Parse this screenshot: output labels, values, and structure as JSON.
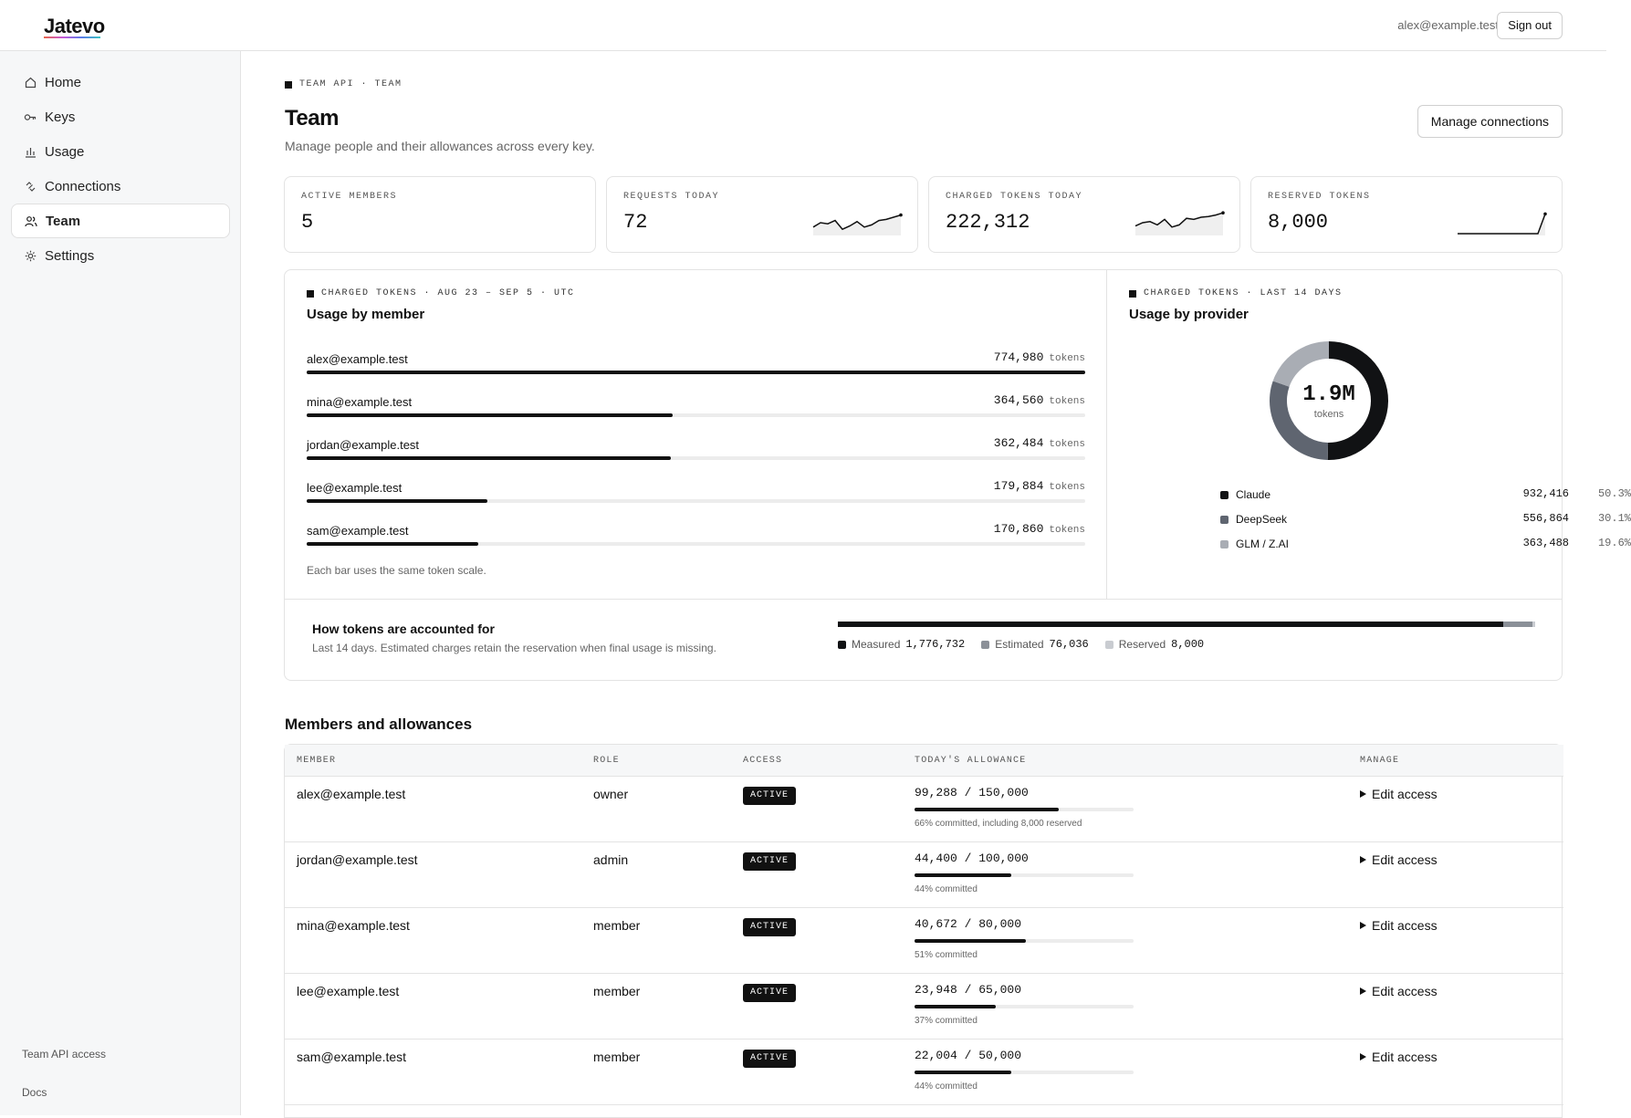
{
  "app": {
    "brand": "Jatevo",
    "user_email": "alex@example.test",
    "signout_label": "Sign out"
  },
  "sidebar": {
    "items": [
      {
        "label": "Home",
        "icon": "home-icon"
      },
      {
        "label": "Keys",
        "icon": "key-icon"
      },
      {
        "label": "Usage",
        "icon": "bar-chart-icon"
      },
      {
        "label": "Connections",
        "icon": "link-icon"
      },
      {
        "label": "Team",
        "icon": "users-icon",
        "active": true
      },
      {
        "label": "Settings",
        "icon": "gear-icon"
      }
    ],
    "footer": {
      "team_api_access": "Team API access",
      "docs": "Docs"
    }
  },
  "header": {
    "breadcrumb": "TEAM API · TEAM",
    "title": "Team",
    "subtitle": "Manage people and their allowances across every key.",
    "manage_button": "Manage connections"
  },
  "stats": [
    {
      "label": "ACTIVE MEMBERS",
      "value": "5"
    },
    {
      "label": "REQUESTS TODAY",
      "value": "72",
      "sparkline": [
        0.3,
        0.5,
        0.45,
        0.6,
        0.2,
        0.35,
        0.55,
        0.3,
        0.4,
        0.6,
        0.65,
        0.75,
        0.85
      ]
    },
    {
      "label": "CHARGED TOKENS TODAY",
      "value": "222,312",
      "sparkline": [
        0.35,
        0.5,
        0.55,
        0.4,
        0.65,
        0.3,
        0.4,
        0.7,
        0.65,
        0.75,
        0.78,
        0.85,
        0.95
      ]
    },
    {
      "label": "RESERVED TOKENS",
      "value": "8,000",
      "sparkline": [
        0,
        0,
        0,
        0,
        0,
        0,
        0,
        0,
        0,
        0,
        0,
        0,
        0.9
      ]
    }
  ],
  "usage_by_member": {
    "label": "CHARGED TOKENS · AUG 23 – SEP 5 · UTC",
    "title": "Usage by member",
    "unit": "tokens",
    "max": 774980,
    "rows": [
      {
        "member": "alex@example.test",
        "tokens": 774980,
        "tokens_display": "774,980"
      },
      {
        "member": "mina@example.test",
        "tokens": 364560,
        "tokens_display": "364,560"
      },
      {
        "member": "jordan@example.test",
        "tokens": 362484,
        "tokens_display": "362,484"
      },
      {
        "member": "lee@example.test",
        "tokens": 179884,
        "tokens_display": "179,884"
      },
      {
        "member": "sam@example.test",
        "tokens": 170860,
        "tokens_display": "170,860"
      }
    ],
    "note": "Each bar uses the same token scale."
  },
  "usage_by_provider": {
    "label": "CHARGED TOKENS · LAST 14 DAYS",
    "title": "Usage by provider",
    "total_display": "1.9M",
    "total_unit": "tokens",
    "providers": [
      {
        "name": "Claude",
        "value": 932416,
        "value_display": "932,416",
        "pct": "50.3%",
        "color": "#111214"
      },
      {
        "name": "DeepSeek",
        "value": 556864,
        "value_display": "556,864",
        "pct": "30.1%",
        "color": "#5f6570"
      },
      {
        "name": "GLM / Z.AI",
        "value": 363488,
        "value_display": "363,488",
        "pct": "19.6%",
        "color": "#a9adb4"
      }
    ]
  },
  "accounting": {
    "title": "How tokens are accounted for",
    "subtitle": "Last 14 days. Estimated charges retain the reservation when final usage is missing.",
    "items": [
      {
        "label": "Measured",
        "value": 1776732,
        "value_display": "1,776,732",
        "color": "#111214"
      },
      {
        "label": "Estimated",
        "value": 76036,
        "value_display": "76,036",
        "color": "#8b9098"
      },
      {
        "label": "Reserved",
        "value": 8000,
        "value_display": "8,000",
        "color": "#c9ccd1"
      }
    ]
  },
  "members_table": {
    "title": "Members and allowances",
    "columns": [
      "MEMBER",
      "ROLE",
      "ACCESS",
      "TODAY'S ALLOWANCE",
      "MANAGE"
    ],
    "rows": [
      {
        "member": "alex@example.test",
        "role": "owner",
        "access": "ACTIVE",
        "allowance": "99,288 / 150,000",
        "fraction": 0.66,
        "note": "66% committed, including 8,000 reserved",
        "manage": "Edit access"
      },
      {
        "member": "jordan@example.test",
        "role": "admin",
        "access": "ACTIVE",
        "allowance": "44,400 / 100,000",
        "fraction": 0.44,
        "note": "44% committed",
        "manage": "Edit access"
      },
      {
        "member": "mina@example.test",
        "role": "member",
        "access": "ACTIVE",
        "allowance": "40,672 / 80,000",
        "fraction": 0.51,
        "note": "51% committed",
        "manage": "Edit access"
      },
      {
        "member": "lee@example.test",
        "role": "member",
        "access": "ACTIVE",
        "allowance": "23,948 / 65,000",
        "fraction": 0.37,
        "note": "37% committed",
        "manage": "Edit access"
      },
      {
        "member": "sam@example.test",
        "role": "member",
        "access": "ACTIVE",
        "allowance": "22,004 / 50,000",
        "fraction": 0.44,
        "note": "44% committed",
        "manage": "Edit access"
      }
    ]
  }
}
